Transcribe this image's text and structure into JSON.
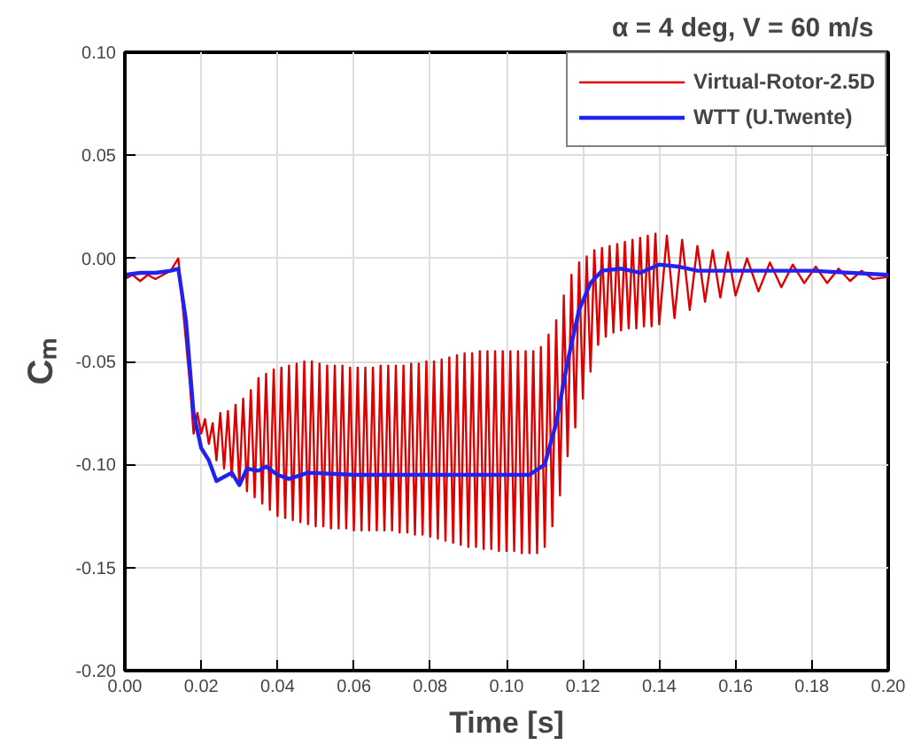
{
  "chart_data": {
    "type": "line",
    "title": "α =  4 deg,  V = 60 m/s",
    "xlabel": "Time [s]",
    "ylabel": "Cₘ",
    "xlim": [
      0,
      0.2
    ],
    "ylim": [
      -0.2,
      0.1
    ],
    "xticks": [
      {
        "value": 0,
        "label": "0.00"
      },
      {
        "value": 0.02,
        "label": "0.02"
      },
      {
        "value": 0.04,
        "label": "0.04"
      },
      {
        "value": 0.06,
        "label": "0.06"
      },
      {
        "value": 0.08,
        "label": "0.08"
      },
      {
        "value": 0.1,
        "label": "0.10"
      },
      {
        "value": 0.12,
        "label": "0.12"
      },
      {
        "value": 0.14,
        "label": "0.14"
      },
      {
        "value": 0.16,
        "label": "0.16"
      },
      {
        "value": 0.18,
        "label": "0.18"
      },
      {
        "value": 0.2,
        "label": "0.20"
      }
    ],
    "yticks": [
      {
        "value": -0.2,
        "label": "-0.20"
      },
      {
        "value": -0.15,
        "label": "-0.15"
      },
      {
        "value": -0.1,
        "label": "-0.10"
      },
      {
        "value": -0.05,
        "label": "-0.05"
      },
      {
        "value": 0,
        "label": "0.00"
      },
      {
        "value": 0.05,
        "label": "0.05"
      },
      {
        "value": 0.1,
        "label": "0.10"
      }
    ],
    "grid": true,
    "legend": "top right",
    "marker": "none",
    "line_style": "solid",
    "series": [
      {
        "name": "Virtual-Rotor-2.5D",
        "color": "#dd0000",
        "x": [
          0,
          0.002,
          0.004,
          0.006,
          0.008,
          0.01,
          0.012,
          0.014,
          0.017,
          0.018,
          0.019,
          0.02,
          0.021,
          0.022,
          0.023,
          0.024,
          0.025,
          0.026,
          0.027,
          0.028,
          0.029,
          0.03,
          0.031,
          0.032,
          0.033,
          0.034,
          0.035,
          0.036,
          0.037,
          0.038,
          0.039,
          0.04,
          0.041,
          0.042,
          0.043,
          0.044,
          0.045,
          0.046,
          0.047,
          0.048,
          0.049,
          0.05,
          0.051,
          0.052,
          0.053,
          0.054,
          0.055,
          0.056,
          0.057,
          0.058,
          0.059,
          0.06,
          0.061,
          0.062,
          0.063,
          0.064,
          0.065,
          0.066,
          0.067,
          0.068,
          0.069,
          0.07,
          0.071,
          0.072,
          0.073,
          0.074,
          0.075,
          0.076,
          0.077,
          0.078,
          0.079,
          0.08,
          0.081,
          0.082,
          0.083,
          0.084,
          0.085,
          0.086,
          0.087,
          0.088,
          0.089,
          0.09,
          0.091,
          0.092,
          0.093,
          0.094,
          0.095,
          0.096,
          0.097,
          0.098,
          0.099,
          0.1,
          0.101,
          0.102,
          0.103,
          0.104,
          0.105,
          0.106,
          0.107,
          0.108,
          0.109,
          0.11,
          0.111,
          0.112,
          0.113,
          0.114,
          0.115,
          0.116,
          0.117,
          0.118,
          0.119,
          0.12,
          0.121,
          0.122,
          0.123,
          0.124,
          0.125,
          0.126,
          0.127,
          0.128,
          0.129,
          0.13,
          0.131,
          0.132,
          0.133,
          0.134,
          0.135,
          0.136,
          0.137,
          0.138,
          0.139,
          0.14,
          0.142,
          0.144,
          0.146,
          0.148,
          0.15,
          0.152,
          0.154,
          0.156,
          0.158,
          0.16,
          0.163,
          0.166,
          0.169,
          0.172,
          0.175,
          0.178,
          0.181,
          0.184,
          0.187,
          0.19,
          0.193,
          0.196,
          0.2
        ],
        "values": [
          -0.01,
          -0.008,
          -0.011,
          -0.008,
          -0.01,
          -0.008,
          -0.006,
          0.0,
          -0.06,
          -0.085,
          -0.075,
          -0.085,
          -0.078,
          -0.09,
          -0.08,
          -0.098,
          -0.075,
          -0.102,
          -0.074,
          -0.106,
          -0.071,
          -0.11,
          -0.068,
          -0.113,
          -0.064,
          -0.116,
          -0.058,
          -0.119,
          -0.056,
          -0.122,
          -0.054,
          -0.125,
          -0.053,
          -0.126,
          -0.052,
          -0.127,
          -0.051,
          -0.128,
          -0.05,
          -0.129,
          -0.05,
          -0.13,
          -0.051,
          -0.13,
          -0.052,
          -0.131,
          -0.052,
          -0.131,
          -0.052,
          -0.131,
          -0.053,
          -0.132,
          -0.053,
          -0.132,
          -0.053,
          -0.132,
          -0.053,
          -0.132,
          -0.052,
          -0.132,
          -0.052,
          -0.132,
          -0.052,
          -0.133,
          -0.052,
          -0.133,
          -0.051,
          -0.134,
          -0.051,
          -0.134,
          -0.05,
          -0.135,
          -0.05,
          -0.136,
          -0.049,
          -0.137,
          -0.048,
          -0.138,
          -0.047,
          -0.139,
          -0.046,
          -0.14,
          -0.046,
          -0.14,
          -0.045,
          -0.141,
          -0.045,
          -0.141,
          -0.045,
          -0.142,
          -0.045,
          -0.142,
          -0.045,
          -0.142,
          -0.045,
          -0.143,
          -0.045,
          -0.143,
          -0.045,
          -0.143,
          -0.043,
          -0.14,
          -0.037,
          -0.13,
          -0.03,
          -0.115,
          -0.018,
          -0.096,
          -0.008,
          -0.082,
          -0.002,
          -0.068,
          0.001,
          -0.055,
          0.004,
          -0.042,
          0.005,
          -0.038,
          0.006,
          -0.036,
          0.007,
          -0.035,
          0.008,
          -0.034,
          0.009,
          -0.034,
          0.01,
          -0.033,
          0.011,
          -0.033,
          0.012,
          -0.032,
          0.011,
          -0.029,
          0.009,
          -0.025,
          0.006,
          -0.021,
          0.004,
          -0.019,
          0.003,
          -0.018,
          0.0,
          -0.016,
          -0.002,
          -0.014,
          -0.003,
          -0.012,
          -0.004,
          -0.012,
          -0.005,
          -0.011,
          -0.006,
          -0.01,
          -0.009
        ]
      },
      {
        "name": "WTT (U.Twente)",
        "color": "#2222ee",
        "x": [
          0,
          0.004,
          0.008,
          0.012,
          0.014,
          0.016,
          0.018,
          0.02,
          0.022,
          0.024,
          0.026,
          0.028,
          0.03,
          0.032,
          0.035,
          0.037,
          0.04,
          0.043,
          0.048,
          0.06,
          0.08,
          0.1,
          0.106,
          0.11,
          0.113,
          0.116,
          0.119,
          0.122,
          0.125,
          0.13,
          0.135,
          0.14,
          0.145,
          0.15,
          0.16,
          0.18,
          0.2
        ],
        "values": [
          -0.008,
          -0.007,
          -0.007,
          -0.006,
          -0.005,
          -0.03,
          -0.075,
          -0.092,
          -0.098,
          -0.108,
          -0.106,
          -0.104,
          -0.11,
          -0.102,
          -0.103,
          -0.101,
          -0.105,
          -0.107,
          -0.104,
          -0.105,
          -0.105,
          -0.105,
          -0.105,
          -0.1,
          -0.08,
          -0.05,
          -0.025,
          -0.012,
          -0.006,
          -0.005,
          -0.007,
          -0.003,
          -0.004,
          -0.006,
          -0.006,
          -0.006,
          -0.008
        ]
      }
    ]
  }
}
